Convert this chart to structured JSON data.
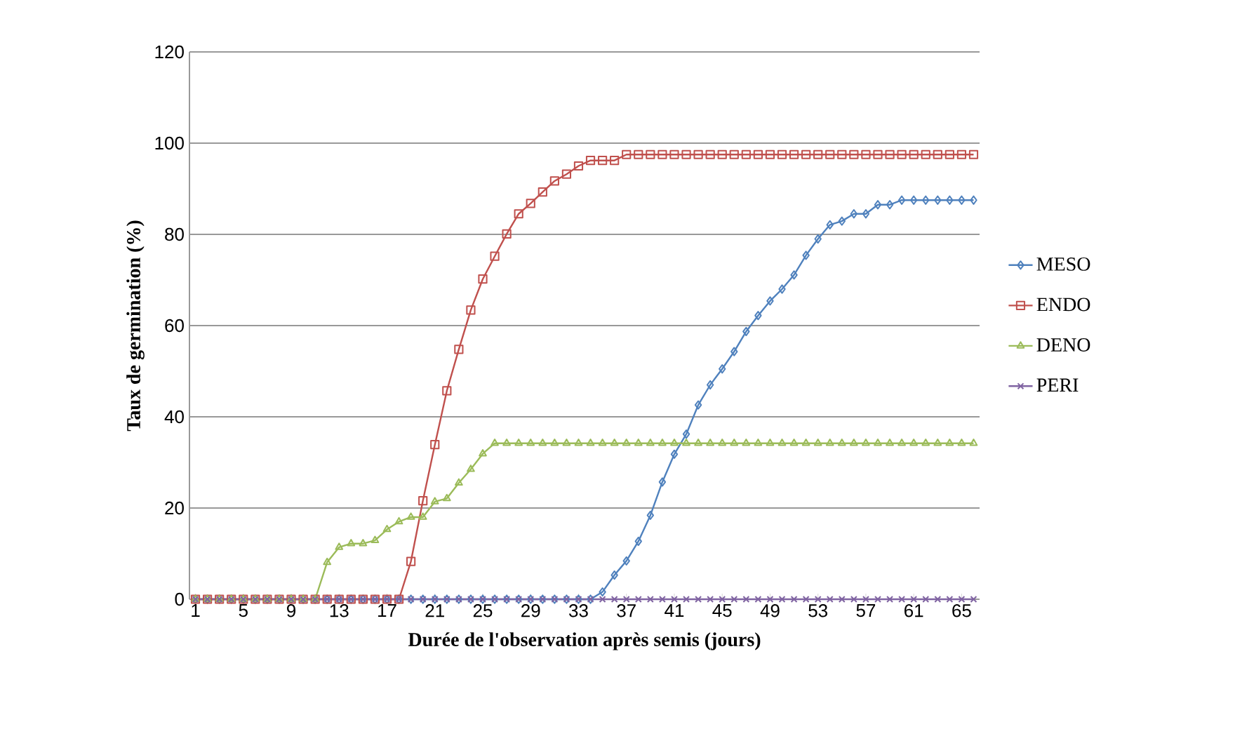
{
  "chart_data": {
    "type": "line",
    "xlabel": "Durée de l'observation après semis (jours)",
    "ylabel": "Taux de germination (%)",
    "categories": [
      "1",
      null,
      null,
      null,
      "5",
      null,
      null,
      null,
      "9",
      null,
      null,
      null,
      "13",
      null,
      null,
      null,
      "17",
      null,
      null,
      null,
      "21",
      null,
      null,
      null,
      "25",
      null,
      null,
      null,
      "29",
      null,
      null,
      null,
      "33",
      null,
      null,
      null,
      "37",
      null,
      null,
      null,
      "41",
      null,
      null,
      null,
      "45",
      null,
      null,
      null,
      "49",
      null,
      null,
      null,
      "53",
      null,
      null,
      null,
      "57",
      null,
      null,
      null,
      "61",
      null,
      null,
      null,
      "65",
      null
    ],
    "ylim": [
      0,
      120
    ],
    "yticks": [
      0,
      20,
      40,
      60,
      80,
      100,
      120
    ],
    "grid": "y",
    "legend": "right",
    "series": [
      {
        "name": "MESO",
        "color": "#4f81bd",
        "marker": "diamond",
        "values": [
          0,
          0,
          0,
          0,
          0,
          0,
          0,
          0,
          0,
          0,
          0,
          0,
          0,
          0,
          0,
          0,
          0,
          0,
          0,
          0,
          0,
          0,
          0,
          0,
          0,
          0,
          0,
          0,
          0,
          0,
          0,
          0,
          0,
          0,
          1.6,
          5.3,
          8.4,
          12.7,
          18.4,
          25.7,
          31.8,
          36.2,
          42.6,
          47,
          50.5,
          54.3,
          58.7,
          62.2,
          65.4,
          68,
          71.1,
          75.4,
          79,
          82.1,
          82.9,
          84.5,
          84.5,
          86.5,
          86.5,
          87.5,
          87.5,
          87.5,
          87.5,
          87.5,
          87.5,
          87.5
        ]
      },
      {
        "name": "ENDO",
        "color": "#c0504d",
        "marker": "square",
        "values": [
          0,
          0,
          0,
          0,
          0,
          0,
          0,
          0,
          0,
          0,
          0,
          0,
          0,
          0,
          0,
          0,
          0,
          0,
          8.3,
          21.6,
          33.9,
          45.7,
          54.8,
          63.4,
          70.2,
          75.2,
          80.1,
          84.5,
          86.8,
          89.3,
          91.7,
          93.2,
          95,
          96.2,
          96.2,
          96.2,
          97.5,
          97.5,
          97.5,
          97.5,
          97.5,
          97.5,
          97.5,
          97.5,
          97.5,
          97.5,
          97.5,
          97.5,
          97.5,
          97.5,
          97.5,
          97.5,
          97.5,
          97.5,
          97.5,
          97.5,
          97.5,
          97.5,
          97.5,
          97.5,
          97.5,
          97.5,
          97.5,
          97.5,
          97.5,
          97.5
        ]
      },
      {
        "name": "DENO",
        "color": "#9bbb59",
        "marker": "triangle",
        "values": [
          0,
          0,
          0,
          0,
          0,
          0,
          0,
          0,
          0,
          0,
          0,
          8.1,
          11.4,
          12.2,
          12.2,
          12.9,
          15.3,
          17,
          18,
          18,
          21.4,
          22.1,
          25.5,
          28.5,
          31.9,
          34.2,
          34.2,
          34.2,
          34.2,
          34.2,
          34.2,
          34.2,
          34.2,
          34.2,
          34.2,
          34.2,
          34.2,
          34.2,
          34.2,
          34.2,
          34.2,
          34.2,
          34.2,
          34.2,
          34.2,
          34.2,
          34.2,
          34.2,
          34.2,
          34.2,
          34.2,
          34.2,
          34.2,
          34.2,
          34.2,
          34.2,
          34.2,
          34.2,
          34.2,
          34.2,
          34.2,
          34.2,
          34.2,
          34.2,
          34.2,
          34.2
        ]
      },
      {
        "name": "PERI",
        "color": "#8064a2",
        "marker": "cross",
        "values": [
          0,
          0,
          0,
          0,
          0,
          0,
          0,
          0,
          0,
          0,
          0,
          0,
          0,
          0,
          0,
          0,
          0,
          0,
          0,
          0,
          0,
          0,
          0,
          0,
          0,
          0,
          0,
          0,
          0,
          0,
          0,
          0,
          0,
          0,
          0,
          0,
          0,
          0,
          0,
          0,
          0,
          0,
          0,
          0,
          0,
          0,
          0,
          0,
          0,
          0,
          0,
          0,
          0,
          0,
          0,
          0,
          0,
          0,
          0,
          0,
          0,
          0,
          0,
          0,
          0,
          0
        ]
      }
    ]
  }
}
